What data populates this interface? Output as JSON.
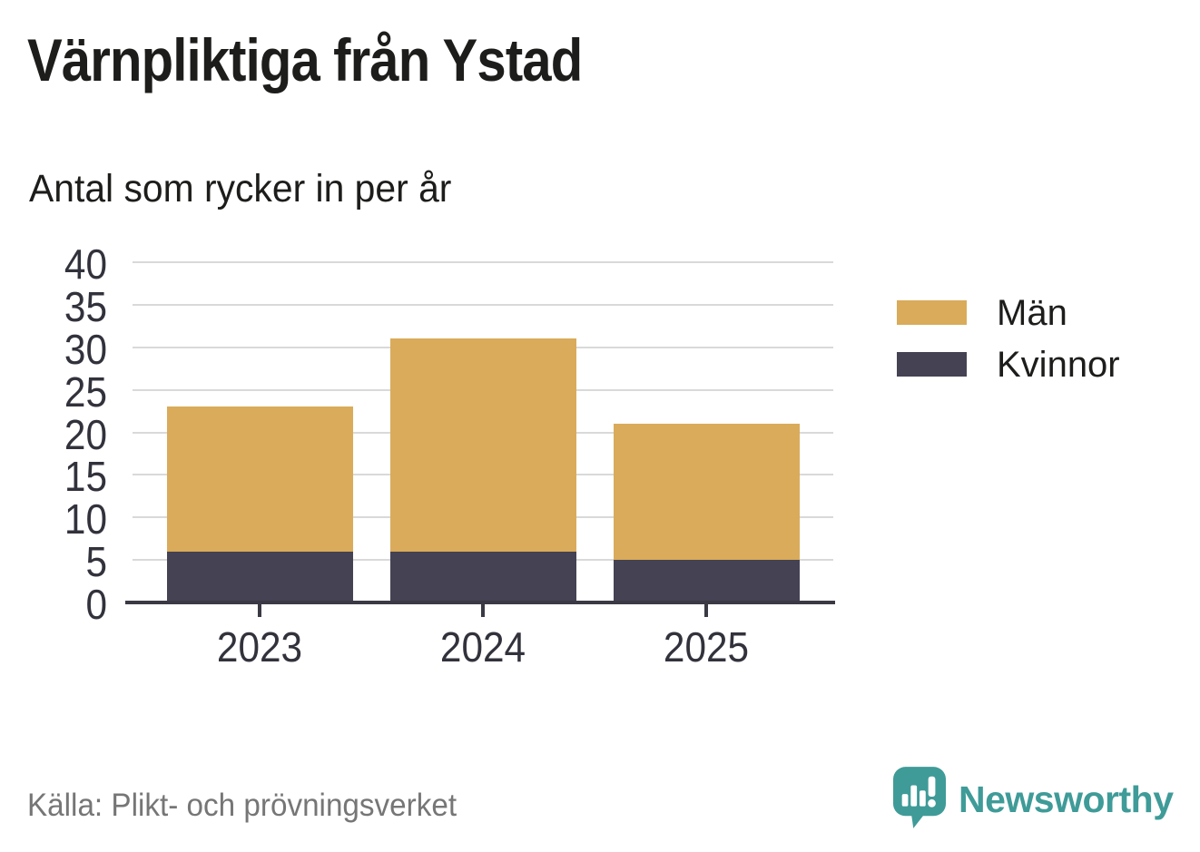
{
  "page": {
    "title": "Värnpliktiga från Ystad",
    "subtitle": "Antal som rycker in per år",
    "source": "Källa: Plikt- och prövningsverket"
  },
  "branding": {
    "logo_text": "Newsworthy",
    "logo_icon": "newsworthy-speech-bubble-chart-icon",
    "logo_color": "#3f9b98"
  },
  "colors": {
    "men_bar": "#d9ab5a",
    "women_bar": "#444253",
    "gridline": "#d9d9d9",
    "axis": "#3a3944",
    "tick_text": "#32323c",
    "title_text": "#1d1d1b",
    "source_text": "#767676"
  },
  "chart_data": {
    "type": "bar",
    "stacked": true,
    "categories": [
      "2023",
      "2024",
      "2025"
    ],
    "series": [
      {
        "name": "Män",
        "color": "#d9ab5a",
        "values": [
          17,
          25,
          16
        ]
      },
      {
        "name": "Kvinnor",
        "color": "#444253",
        "values": [
          6,
          6,
          5
        ]
      }
    ],
    "stack_order_bottom_to_top": [
      "Kvinnor",
      "Män"
    ],
    "stack_totals": [
      23,
      31,
      21
    ],
    "title": "Värnpliktiga från Ystad",
    "subtitle": "Antal som rycker in per år",
    "xlabel": "",
    "ylabel": "",
    "ylim": [
      0,
      40
    ],
    "y_ticks": [
      0,
      5,
      10,
      15,
      20,
      25,
      30,
      35,
      40
    ],
    "grid": "horizontal",
    "legend_position": "right",
    "source": "Källa: Plikt- och prövningsverket"
  }
}
